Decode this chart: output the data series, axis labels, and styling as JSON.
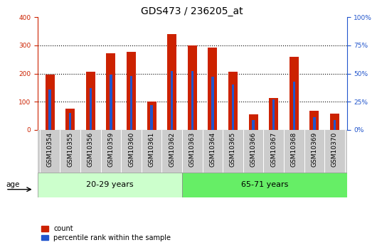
{
  "title": "GDS473 / 236205_at",
  "samples": [
    "GSM10354",
    "GSM10355",
    "GSM10356",
    "GSM10359",
    "GSM10360",
    "GSM10361",
    "GSM10362",
    "GSM10363",
    "GSM10364",
    "GSM10365",
    "GSM10366",
    "GSM10367",
    "GSM10368",
    "GSM10369",
    "GSM10370"
  ],
  "counts": [
    195,
    75,
    207,
    272,
    278,
    100,
    340,
    300,
    292,
    207,
    55,
    112,
    260,
    68,
    58
  ],
  "percentiles": [
    36,
    15,
    37,
    49,
    48,
    22,
    52,
    52,
    47,
    40,
    9,
    27,
    43,
    11,
    9
  ],
  "group1_label": "20-29 years",
  "group2_label": "65-71 years",
  "group1_count": 7,
  "group2_count": 8,
  "age_label": "age",
  "count_color": "#cc2200",
  "percentile_color": "#2255cc",
  "red_bar_width": 0.45,
  "blue_bar_width": 0.12,
  "ylim_left": [
    0,
    400
  ],
  "ylim_right": [
    0,
    100
  ],
  "yticks_left": [
    0,
    100,
    200,
    300,
    400
  ],
  "ytick_labels_left": [
    "0",
    "100",
    "200",
    "300",
    "400"
  ],
  "yticks_right": [
    0,
    25,
    50,
    75,
    100
  ],
  "ytick_labels_right": [
    "0%",
    "25%",
    "50%",
    "75%",
    "100%"
  ],
  "group1_bg": "#ccffcc",
  "group2_bg": "#66ee66",
  "tick_bg": "#cccccc",
  "left_axis_color": "#cc2200",
  "right_axis_color": "#2255cc",
  "title_fontsize": 10,
  "tick_fontsize": 6.5,
  "label_fontsize": 8
}
